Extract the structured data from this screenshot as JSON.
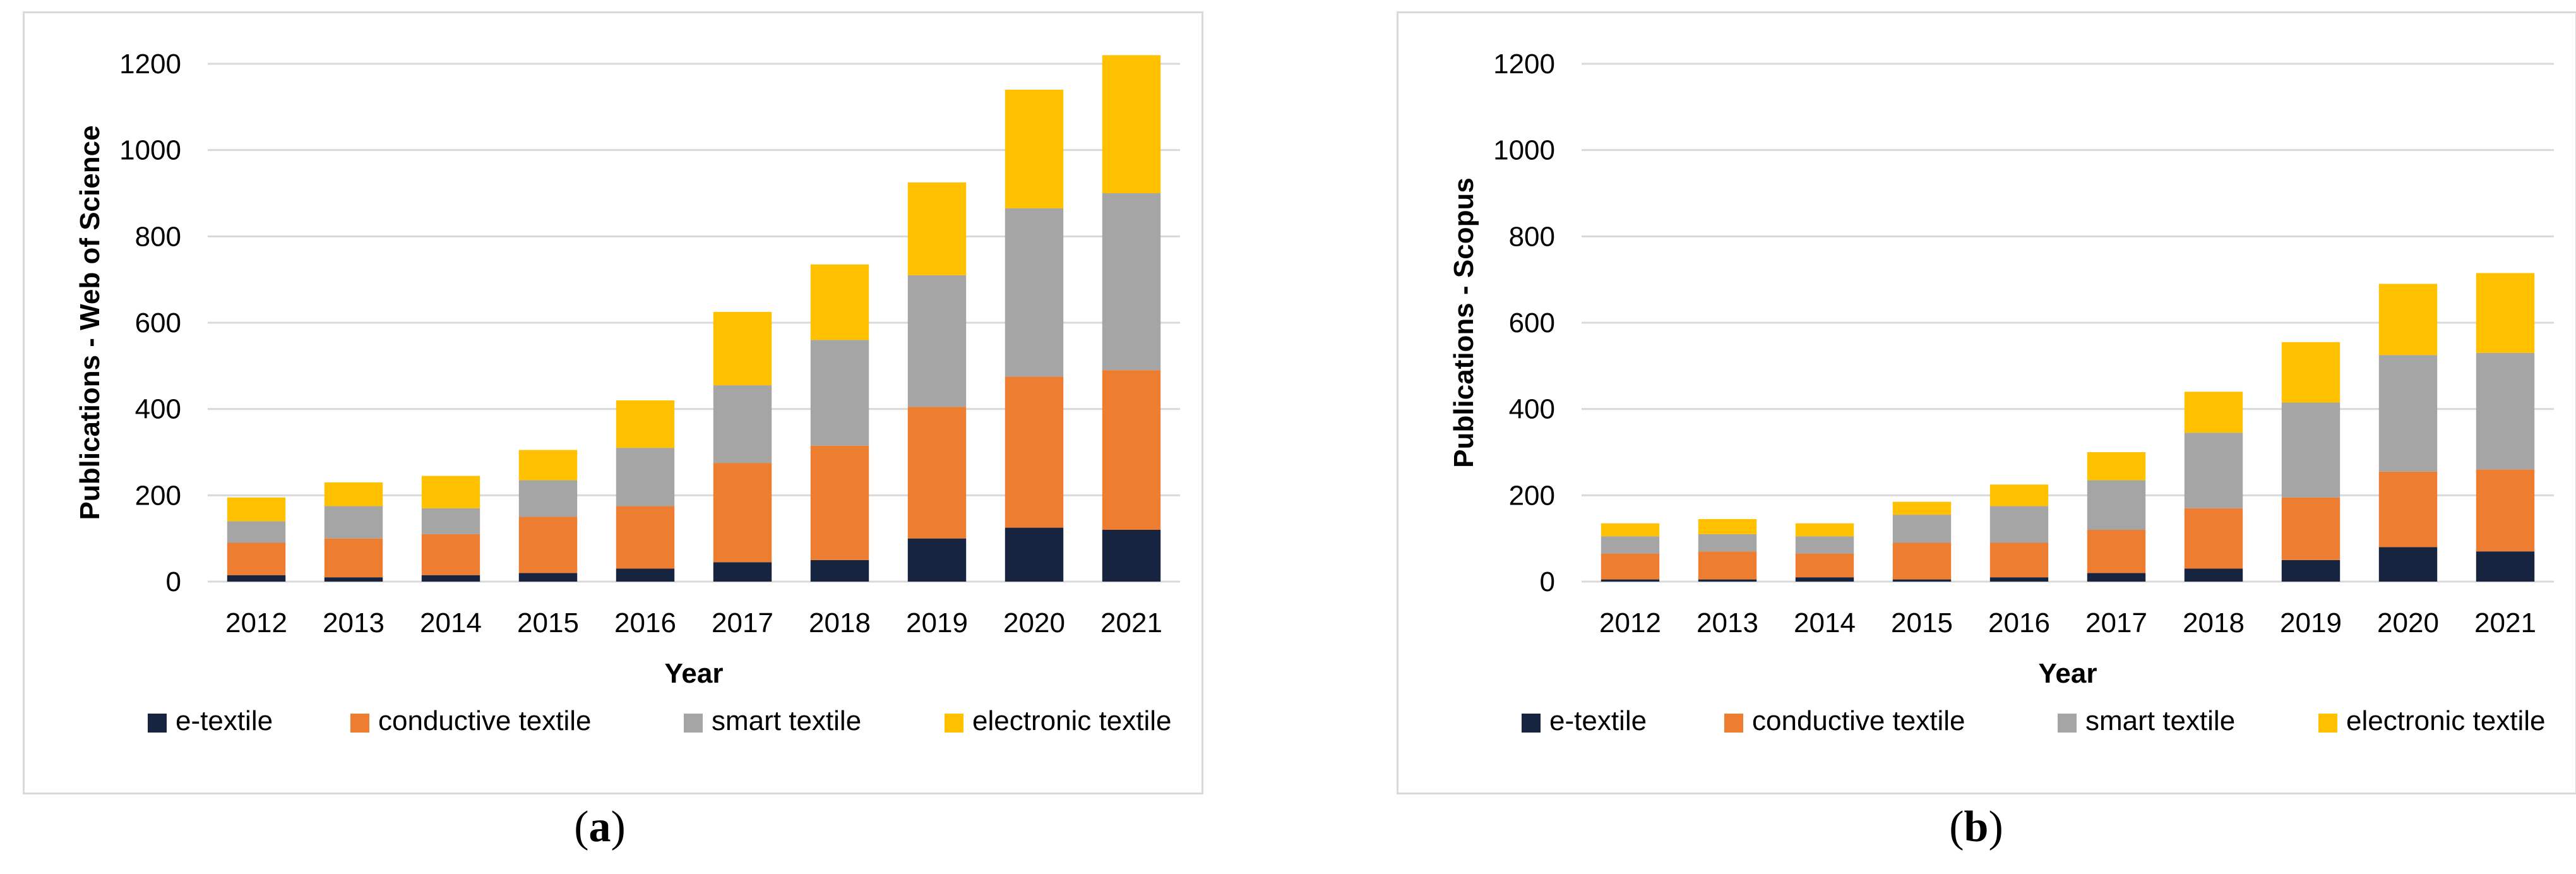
{
  "chart_data": [
    {
      "type": "bar",
      "stacked": true,
      "panel_label": "a",
      "categories": [
        "2012",
        "2013",
        "2014",
        "2015",
        "2016",
        "2017",
        "2018",
        "2019",
        "2020",
        "2021"
      ],
      "series": [
        {
          "name": "e-textile",
          "color": "#17243f",
          "values": [
            15,
            10,
            15,
            20,
            30,
            45,
            50,
            100,
            125,
            120
          ]
        },
        {
          "name": "conductive textile",
          "color": "#ed7d31",
          "values": [
            75,
            90,
            95,
            130,
            145,
            230,
            265,
            305,
            350,
            370
          ]
        },
        {
          "name": "smart textile",
          "color": "#a5a5a5",
          "values": [
            50,
            75,
            60,
            85,
            135,
            180,
            245,
            305,
            390,
            410
          ]
        },
        {
          "name": "electronic textile",
          "color": "#ffc000",
          "values": [
            55,
            55,
            75,
            70,
            110,
            170,
            175,
            215,
            275,
            320
          ]
        }
      ],
      "xlabel": "Year",
      "ylabel": "Publications  - Web of Science",
      "ylim": [
        0,
        1200
      ],
      "yticks": [
        0,
        200,
        400,
        600,
        800,
        1000,
        1200
      ],
      "grid": true,
      "legend": "bottom"
    },
    {
      "type": "bar",
      "stacked": true,
      "panel_label": "b",
      "categories": [
        "2012",
        "2013",
        "2014",
        "2015",
        "2016",
        "2017",
        "2018",
        "2019",
        "2020",
        "2021"
      ],
      "series": [
        {
          "name": "e-textile",
          "color": "#17243f",
          "values": [
            5,
            5,
            10,
            5,
            10,
            20,
            30,
            50,
            80,
            70
          ]
        },
        {
          "name": "conductive textile",
          "color": "#ed7d31",
          "values": [
            60,
            65,
            55,
            85,
            80,
            100,
            140,
            145,
            175,
            190
          ]
        },
        {
          "name": "smart textile",
          "color": "#a5a5a5",
          "values": [
            40,
            40,
            40,
            65,
            85,
            115,
            175,
            220,
            270,
            270
          ]
        },
        {
          "name": "electronic textile",
          "color": "#ffc000",
          "values": [
            30,
            35,
            30,
            30,
            50,
            65,
            95,
            140,
            165,
            185
          ]
        }
      ],
      "xlabel": "Year",
      "ylabel": "Publications  - Scopus",
      "ylim": [
        0,
        1200
      ],
      "yticks": [
        0,
        200,
        400,
        600,
        800,
        1000,
        1200
      ],
      "grid": true,
      "legend": "bottom"
    }
  ]
}
